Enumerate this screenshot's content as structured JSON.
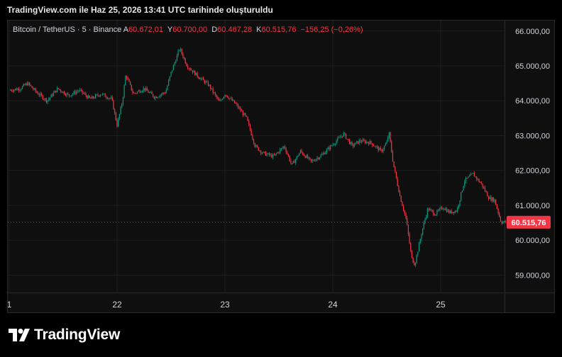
{
  "snapshot_title": "TradingView.com ile Haz 25, 2026 13:41 UTC tarihinde oluşturuldu",
  "legend": {
    "symbol": "Bitcoin / TetherUS · 5 · Binance",
    "open_label": "A",
    "open": "60.672,01",
    "high_label": "Y",
    "high": "60.700,00",
    "low_label": "D",
    "low": "60.467,28",
    "close_label": "K",
    "close": "60.515,76",
    "change": "−156,25 (−0,26%)"
  },
  "price_label": "60.515,76",
  "brand": "TradingView",
  "colors": {
    "up": "#089981",
    "down": "#f23645",
    "background": "#0f0f0f",
    "grid": "#1e1e1e",
    "text": "#d1d4dc"
  },
  "chart_data": {
    "type": "candlestick",
    "x_tick_labels": [
      "1",
      "22",
      "23",
      "24",
      "25"
    ],
    "y_tick_labels": [
      "66.000,00",
      "65.000,00",
      "64.000,00",
      "63.000,00",
      "62.000,00",
      "61.000,00",
      "60.000,00",
      "59.000,00"
    ],
    "y_ticks": [
      66000,
      65000,
      64000,
      63000,
      62000,
      61000,
      60000,
      59000
    ],
    "ylim": [
      58500,
      66300
    ],
    "x_range_days": [
      21.0,
      25.6
    ],
    "last_price": 60515.76,
    "grid": true,
    "price_path": [
      [
        21.0,
        64300
      ],
      [
        21.1,
        64350
      ],
      [
        21.17,
        64500
      ],
      [
        21.25,
        64250
      ],
      [
        21.35,
        64000
      ],
      [
        21.45,
        64350
      ],
      [
        21.55,
        64150
      ],
      [
        21.65,
        64300
      ],
      [
        21.75,
        64050
      ],
      [
        21.85,
        64200
      ],
      [
        21.95,
        64050
      ],
      [
        22.0,
        63300
      ],
      [
        22.05,
        64000
      ],
      [
        22.08,
        64750
      ],
      [
        22.15,
        64200
      ],
      [
        22.25,
        64350
      ],
      [
        22.35,
        64100
      ],
      [
        22.45,
        64250
      ],
      [
        22.5,
        64800
      ],
      [
        22.58,
        65500
      ],
      [
        22.65,
        65000
      ],
      [
        22.75,
        64700
      ],
      [
        22.85,
        64450
      ],
      [
        22.95,
        63950
      ],
      [
        23.0,
        64200
      ],
      [
        23.1,
        63900
      ],
      [
        23.2,
        63500
      ],
      [
        23.28,
        62700
      ],
      [
        23.35,
        62500
      ],
      [
        23.45,
        62400
      ],
      [
        23.55,
        62700
      ],
      [
        23.62,
        62150
      ],
      [
        23.7,
        62550
      ],
      [
        23.8,
        62250
      ],
      [
        23.9,
        62450
      ],
      [
        24.0,
        62750
      ],
      [
        24.1,
        63050
      ],
      [
        24.18,
        62700
      ],
      [
        24.25,
        62850
      ],
      [
        24.35,
        62800
      ],
      [
        24.45,
        62550
      ],
      [
        24.5,
        62800
      ],
      [
        24.52,
        63100
      ],
      [
        24.56,
        62200
      ],
      [
        24.62,
        61300
      ],
      [
        24.68,
        60600
      ],
      [
        24.73,
        59500
      ],
      [
        24.76,
        59300
      ],
      [
        24.83,
        60300
      ],
      [
        24.88,
        60900
      ],
      [
        24.95,
        60750
      ],
      [
        25.02,
        60950
      ],
      [
        25.08,
        60800
      ],
      [
        25.15,
        60850
      ],
      [
        25.22,
        61700
      ],
      [
        25.3,
        61900
      ],
      [
        25.38,
        61600
      ],
      [
        25.45,
        61200
      ],
      [
        25.5,
        61150
      ],
      [
        25.56,
        60520
      ]
    ]
  }
}
